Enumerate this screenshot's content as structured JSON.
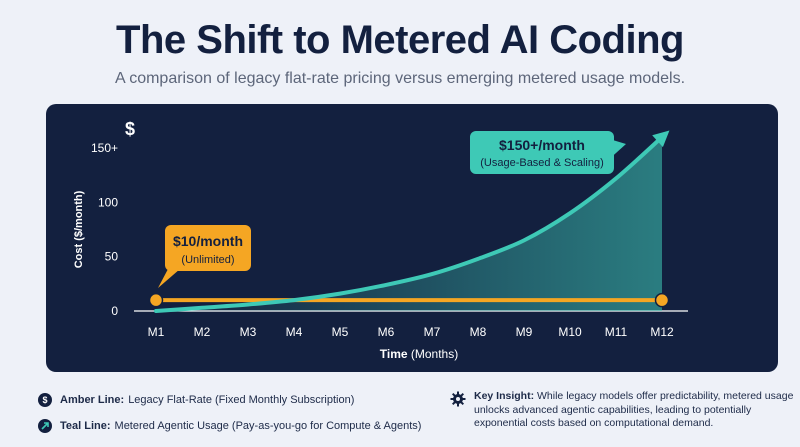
{
  "title": "The Shift to Metered AI Coding",
  "subtitle": "A comparison of legacy flat-rate pricing versus emerging metered usage models.",
  "chart_data": {
    "type": "line",
    "ylabel": "Cost ($/month)",
    "ylabel_icon": "$",
    "xlabel_bold": "Time",
    "xlabel_rest": " (Months)",
    "categories": [
      "M1",
      "M2",
      "M3",
      "M4",
      "M5",
      "M6",
      "M7",
      "M8",
      "M9",
      "M10",
      "M11",
      "M12"
    ],
    "y_ticks": [
      {
        "value": 0,
        "label": "0"
      },
      {
        "value": 50,
        "label": "50"
      },
      {
        "value": 100,
        "label": "100"
      },
      {
        "value": 150,
        "label": "150+"
      }
    ],
    "ylim": [
      0,
      150
    ],
    "grid": false,
    "series": [
      {
        "key": "flat",
        "color": "#f5a623",
        "values": [
          10,
          10,
          10,
          10,
          10,
          10,
          10,
          10,
          10,
          10,
          10,
          10
        ]
      },
      {
        "key": "metered",
        "color": "#3ec9b6",
        "values": [
          0,
          3,
          6,
          10,
          16,
          24,
          34,
          48,
          65,
          90,
          122,
          160
        ]
      }
    ],
    "callouts": [
      {
        "series": "flat",
        "title": "$10/month",
        "subtitle": "(Unlimited)",
        "color": "#f5a623"
      },
      {
        "series": "metered",
        "title": "$150+/month",
        "subtitle": "(Usage-Based & Scaling)",
        "color": "#3ec9b6"
      }
    ]
  },
  "legend": [
    {
      "icon": "dollar-icon",
      "bold": "Amber Line:",
      "text": "Legacy Flat-Rate (Fixed Monthly Subscription)"
    },
    {
      "icon": "arrow-up-right-icon",
      "bold": "Teal Line:",
      "text": "Metered Agentic Usage (Pay-as-you-go for Compute & Agents)"
    }
  ],
  "insight": {
    "icon": "gear-icon",
    "bold": "Key Insight:",
    "text": "While legacy models offer predictability, metered usage unlocks advanced agentic capabilities, leading to potentially exponential costs based on computational demand."
  }
}
